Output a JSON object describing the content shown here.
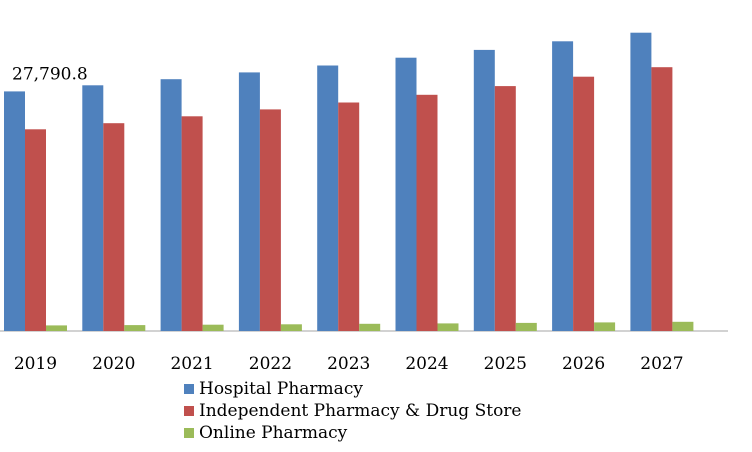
{
  "chart_data": {
    "type": "bar",
    "categories": [
      "2019",
      "2020",
      "2021",
      "2022",
      "2023",
      "2024",
      "2025",
      "2026",
      "2027"
    ],
    "series": [
      {
        "name": "Hospital Pharmacy",
        "color": "#4f81bd",
        "values": [
          27790.8,
          28500,
          29200,
          30000,
          30800,
          31700,
          32600,
          33600,
          34600
        ]
      },
      {
        "name": "Independent Pharmacy & Drug Store",
        "color": "#c0504d",
        "values": [
          23400,
          24100,
          24900,
          25700,
          26500,
          27400,
          28400,
          29500,
          30600
        ]
      },
      {
        "name": "Online Pharmacy",
        "color": "#9bbb59",
        "values": [
          650,
          690,
          730,
          780,
          830,
          880,
          940,
          1000,
          1070
        ]
      }
    ],
    "data_labels": [
      {
        "series": 0,
        "index": 0,
        "text": "27,790.8"
      }
    ],
    "ylim": [
      0,
      37000
    ],
    "grid": false,
    "legend_position": "bottom",
    "title": "",
    "xlabel": "",
    "ylabel": ""
  }
}
